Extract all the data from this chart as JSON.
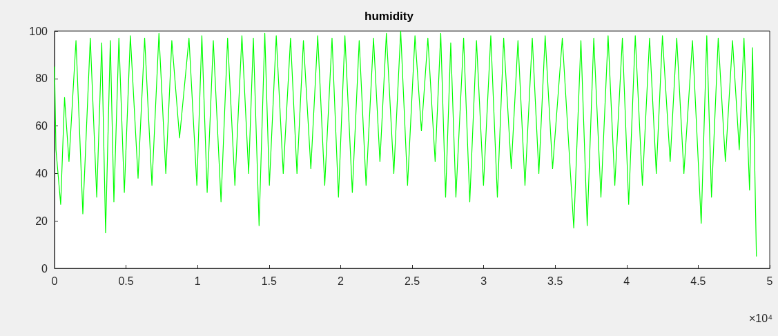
{
  "chart_data": {
    "type": "line",
    "title": "humidity",
    "x": [
      0,
      0.01,
      0.043,
      0.07,
      0.101,
      0.15,
      0.198,
      0.25,
      0.295,
      0.33,
      0.357,
      0.39,
      0.415,
      0.45,
      0.488,
      0.53,
      0.584,
      0.63,
      0.681,
      0.73,
      0.778,
      0.82,
      0.874,
      0.94,
      0.995,
      1.03,
      1.067,
      1.11,
      1.164,
      1.21,
      1.261,
      1.31,
      1.357,
      1.39,
      1.43,
      1.47,
      1.502,
      1.55,
      1.599,
      1.65,
      1.695,
      1.74,
      1.792,
      1.84,
      1.889,
      1.94,
      1.985,
      2.03,
      2.082,
      2.13,
      2.178,
      2.23,
      2.275,
      2.32,
      2.372,
      2.42,
      2.468,
      2.52,
      2.565,
      2.61,
      2.661,
      2.7,
      2.734,
      2.77,
      2.806,
      2.86,
      2.903,
      2.95,
      2.999,
      3.05,
      3.096,
      3.14,
      3.193,
      3.24,
      3.289,
      3.34,
      3.386,
      3.43,
      3.482,
      3.55,
      3.63,
      3.68,
      3.724,
      3.77,
      3.82,
      3.87,
      3.917,
      3.97,
      4.014,
      4.06,
      4.11,
      4.16,
      4.207,
      4.25,
      4.304,
      4.35,
      4.4,
      4.46,
      4.521,
      4.56,
      4.593,
      4.64,
      4.69,
      4.74,
      4.787,
      4.82,
      4.859,
      4.88,
      4.907
    ],
    "series": [
      {
        "color": "#00ff00",
        "values": [
          85,
          50,
          27,
          72,
          45,
          96,
          23,
          97,
          30,
          95,
          15,
          96,
          28,
          97,
          32,
          98,
          38,
          97,
          35,
          99,
          40,
          96,
          55,
          97,
          35,
          98,
          32,
          96,
          28,
          97,
          35,
          98,
          40,
          97,
          18,
          99,
          35,
          98,
          40,
          97,
          40,
          96,
          42,
          98,
          35,
          97,
          30,
          98,
          32,
          96,
          35,
          97,
          45,
          99,
          40,
          100,
          35,
          98,
          58,
          97,
          45,
          99,
          30,
          95,
          30,
          97,
          28,
          96,
          35,
          98,
          30,
          97,
          42,
          96,
          35,
          97,
          40,
          98,
          42,
          97,
          17,
          96,
          18,
          97,
          30,
          98,
          35,
          97,
          27,
          98,
          35,
          97,
          40,
          98,
          45,
          97,
          40,
          96,
          19,
          98,
          30,
          97,
          45,
          96,
          50,
          97,
          33,
          93,
          5
        ]
      }
    ],
    "xlim": [
      0,
      5
    ],
    "xticks": [
      0,
      0.5,
      1,
      1.5,
      2,
      2.5,
      3,
      3.5,
      4,
      4.5,
      5
    ],
    "ylim": [
      0,
      100
    ],
    "yticks": [
      0,
      20,
      40,
      60,
      80,
      100
    ],
    "annotations": [
      "×10⁴"
    ],
    "line_style": "solid"
  }
}
